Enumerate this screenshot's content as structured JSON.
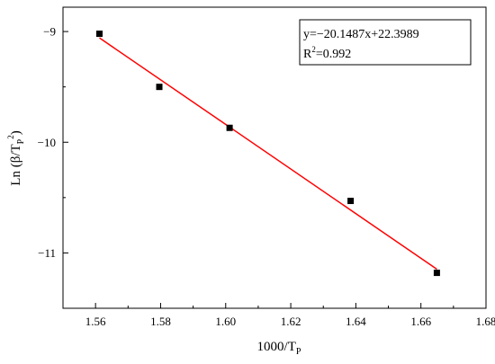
{
  "chart_data": {
    "type": "scatter",
    "title": "",
    "xlabel": {
      "main": "1000/T",
      "sub": "P"
    },
    "ylabel": {
      "pre": "Ln (β/T",
      "sub": "P",
      "sup": "2",
      "post": ")"
    },
    "xlim": [
      1.55,
      1.68
    ],
    "ylim": [
      -11.5,
      -8.78
    ],
    "xticks": [
      1.56,
      1.58,
      1.6,
      1.62,
      1.64,
      1.66,
      1.68
    ],
    "xtick_labels": [
      "1.56",
      "1.58",
      "1.60",
      "1.62",
      "1.64",
      "1.66",
      "1.68"
    ],
    "yticks": [
      -9,
      -10,
      -11
    ],
    "ytick_labels": [
      "−9",
      "−10",
      "−11"
    ],
    "grid": false,
    "points": [
      {
        "x": 1.5612,
        "y": -9.02
      },
      {
        "x": 1.5796,
        "y": -9.5
      },
      {
        "x": 1.6012,
        "y": -9.87
      },
      {
        "x": 1.6384,
        "y": -10.53
      },
      {
        "x": 1.6649,
        "y": -11.18
      }
    ],
    "fit": {
      "slope": -20.1487,
      "intercept": 22.3989,
      "x_start": 1.5612,
      "x_end": 1.6649,
      "color": "#ff0000"
    },
    "marker_color": "#000000",
    "annotation": {
      "equation": "y=−20.1487x+22.3989",
      "r2_label": "R",
      "r2_sup": "2",
      "r2_value": "=0.992"
    }
  }
}
